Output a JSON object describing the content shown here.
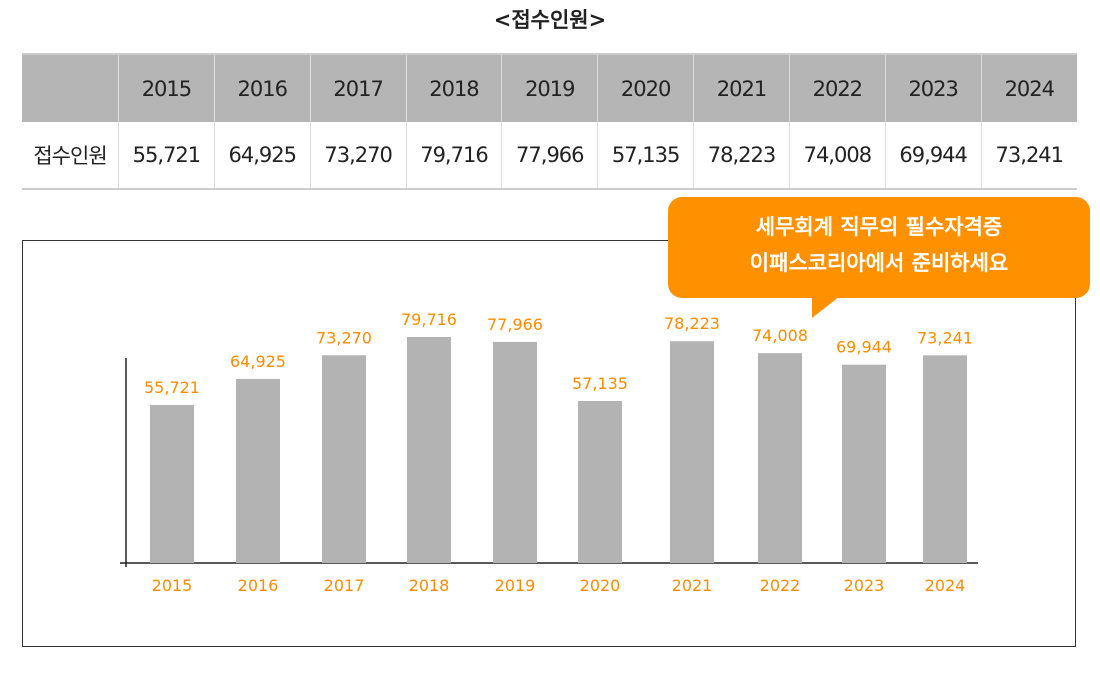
{
  "title": "<접수인원>",
  "table": {
    "row_label": "접수인원",
    "years": [
      "2015",
      "2016",
      "2017",
      "2018",
      "2019",
      "2020",
      "2021",
      "2022",
      "2023",
      "2024"
    ],
    "values": [
      "55,721",
      "64,925",
      "73,270",
      "79,716",
      "77,966",
      "57,135",
      "78,223",
      "74,008",
      "69,944",
      "73,241"
    ]
  },
  "callout": {
    "line1": "세무회계 직무의 필수자격증",
    "line2": "이패스코리아에서 준비하세요"
  },
  "colors": {
    "bar": "#b3b3b3",
    "label": "#ff8c00",
    "callout": "#ff9000"
  },
  "chart_data": {
    "type": "bar",
    "categories": [
      "2015",
      "2016",
      "2017",
      "2018",
      "2019",
      "2020",
      "2021",
      "2022",
      "2023",
      "2024"
    ],
    "values": [
      55721,
      64925,
      73270,
      79716,
      77966,
      57135,
      78223,
      74008,
      69944,
      73241
    ],
    "value_labels": [
      "55,721",
      "64,925",
      "73,270",
      "79,716",
      "77,966",
      "57,135",
      "78,223",
      "74,008",
      "69,944",
      "73,241"
    ],
    "title": "",
    "xlabel": "",
    "ylabel": "",
    "ylim": [
      0,
      85000
    ],
    "grid": false
  }
}
